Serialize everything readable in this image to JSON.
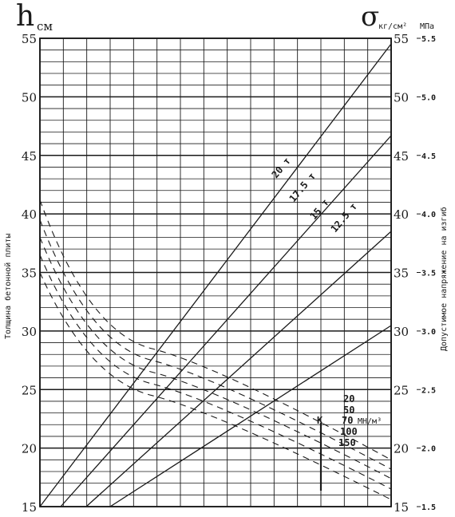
{
  "chart_data": {
    "type": "line",
    "left_axis": {
      "symbol": "h",
      "unit": "см",
      "label": "Толщина бетонной плиты",
      "ylim": [
        15,
        55
      ],
      "ticks": [
        "15",
        "20",
        "25",
        "30",
        "35",
        "40",
        "45",
        "50",
        "55"
      ]
    },
    "right_axis_primary": {
      "symbol": "σ",
      "unit": "кг/см²",
      "ylim": [
        15,
        55
      ],
      "ticks": [
        "15",
        "20",
        "25",
        "30",
        "35",
        "40",
        "45",
        "50",
        "55"
      ]
    },
    "right_axis_secondary": {
      "unit": "МПа",
      "label": "Допустимое напряжение на изгиб",
      "ylim": [
        1.5,
        5.5
      ],
      "ticks": [
        "1.5",
        "2.0",
        "2.5",
        "3.0",
        "3.5",
        "4.0",
        "4.5",
        "5.0",
        "5.5"
      ]
    },
    "grid": true,
    "load_lines": [
      {
        "name": "20 т",
        "x_at_bottom": 0.0,
        "x_at_top": 1.0,
        "label": "20 т"
      },
      {
        "name": "17.5 т",
        "x_at_bottom": 0.06,
        "x_at_top": 1.0,
        "label": "17.5 т"
      },
      {
        "name": "15 т",
        "x_at_bottom": 0.13,
        "x_at_top": 1.0,
        "label": "15 т"
      },
      {
        "name": "12.5 т",
        "x_at_bottom": 0.19,
        "x_at_top": 1.0,
        "label": "12.5 т"
      }
    ],
    "k_series_label": "К",
    "k_unit": "МН/м³",
    "k_values": [
      "20",
      "50",
      "70",
      "100",
      "150"
    ],
    "k_curves": [
      {
        "name": "20",
        "y_start": 41.2,
        "y_mid": 28.5,
        "y_end": 19.0
      },
      {
        "name": "50",
        "y_start": 39.5,
        "y_mid": 27.5,
        "y_end": 18.2
      },
      {
        "name": "70",
        "y_start": 38.0,
        "y_mid": 26.5,
        "y_end": 17.4
      },
      {
        "name": "100",
        "y_start": 36.5,
        "y_mid": 25.5,
        "y_end": 16.5
      },
      {
        "name": "150",
        "y_start": 35.0,
        "y_mid": 24.5,
        "y_end": 15.6
      }
    ]
  }
}
